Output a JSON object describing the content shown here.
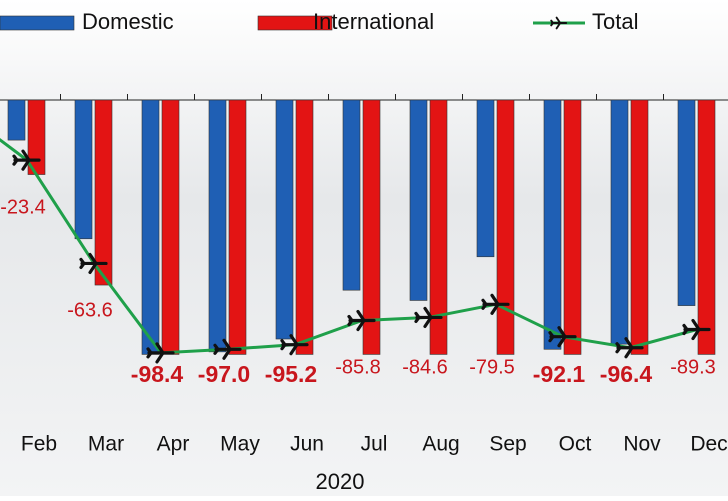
{
  "chart_data": {
    "type": "bar_line",
    "x_label": "2020",
    "categories": [
      "Feb",
      "Mar",
      "Apr",
      "May",
      "Jun",
      "Jul",
      "Aug",
      "Sep",
      "Oct",
      "Nov",
      "Dec"
    ],
    "series": [
      {
        "name": "Domestic",
        "color": "#1f5fb4",
        "type": "bar",
        "values": [
          -15.6,
          -54,
          -99,
          -98,
          -93,
          -74,
          -78,
          -61,
          -97,
          -95,
          -80
        ]
      },
      {
        "name": "International",
        "color": "#e31414",
        "type": "bar",
        "values": [
          -29,
          -72,
          -99,
          -99,
          -99,
          -99,
          -99,
          -99,
          -99,
          -99,
          -99
        ]
      },
      {
        "name": "Total",
        "color": "#1fa04a",
        "type": "line",
        "values": [
          -23.4,
          -63.6,
          -98.4,
          -97.0,
          -95.2,
          -85.8,
          -84.6,
          -79.5,
          -92.1,
          -96.4,
          -89.3
        ],
        "value_labels": [
          "-23.4",
          "-63.6",
          "-98.4",
          "-97.0",
          "-95.2",
          "-85.8",
          "-84.6",
          "-79.5",
          "-92.1",
          "-96.4",
          "-89.3"
        ],
        "bold_labels": [
          false,
          false,
          true,
          true,
          true,
          false,
          false,
          false,
          true,
          true,
          false
        ]
      }
    ],
    "ylim": [
      -100,
      0
    ]
  }
}
